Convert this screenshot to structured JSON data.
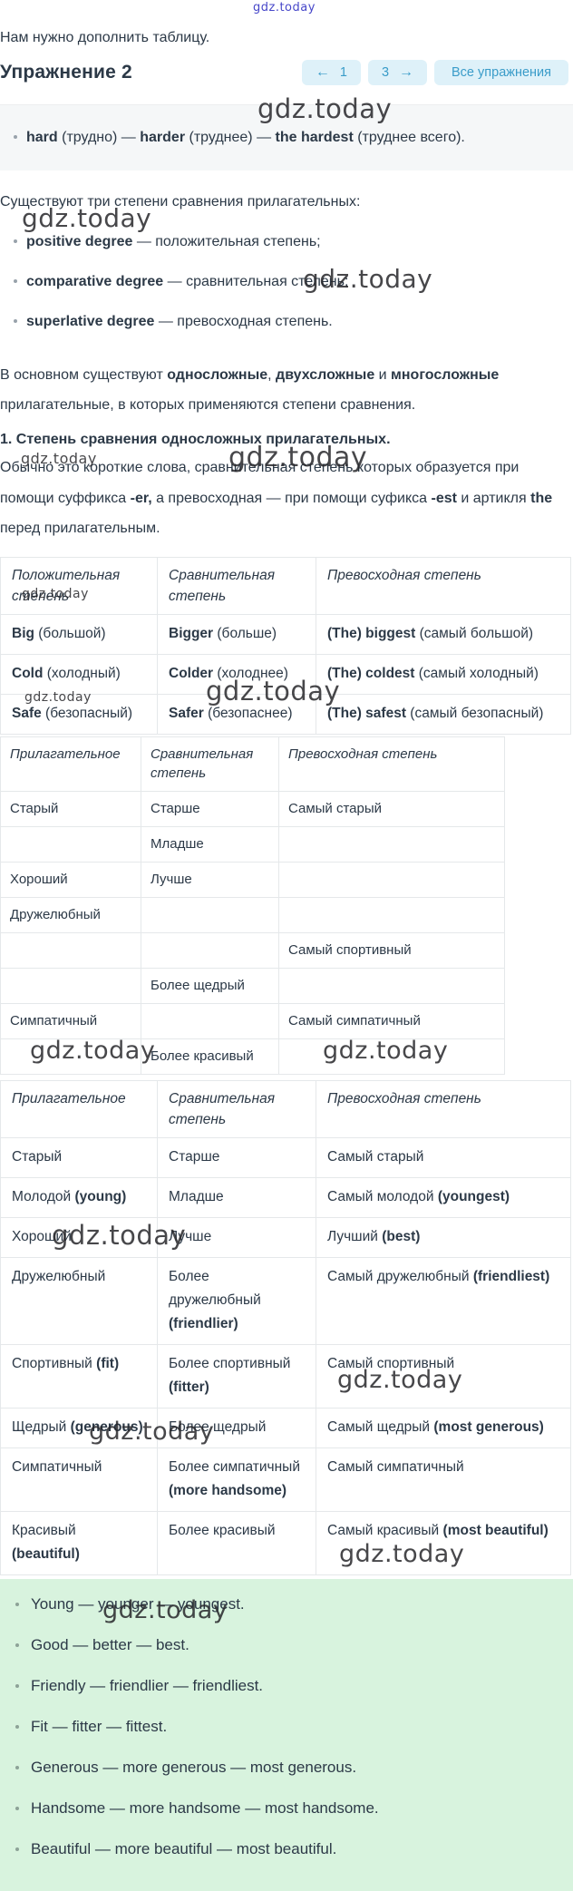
{
  "watermark": "gdz.today",
  "intro_text": "Нам нужно дополнить таблицу.",
  "header": {
    "title": "Упражнение 2",
    "nav": {
      "prev_arrow": "←",
      "prev_number": "1",
      "next_number": "3",
      "next_arrow": "→",
      "all_label": "Все упражнения"
    }
  },
  "example_line": [
    {
      "t": "hard",
      "b": true
    },
    {
      "t": " (трудно) — "
    },
    {
      "t": "harder",
      "b": true
    },
    {
      "t": " (труднее) — "
    },
    {
      "t": "the hardest",
      "b": true
    },
    {
      "t": " (труднее всего)."
    }
  ],
  "lead_text": "Существуют три степени сравнения прилагательных:",
  "degree_bullets": [
    [
      {
        "t": "positive degree",
        "b": true
      },
      {
        "t": " — положительная степень;"
      }
    ],
    [
      {
        "t": "comparative degree",
        "b": true
      },
      {
        "t": " — сравнительная степень;"
      }
    ],
    [
      {
        "t": "superlative degree",
        "b": true
      },
      {
        "t": " — превосходная степень."
      }
    ]
  ],
  "para_main": [
    {
      "t": "В основном существуют "
    },
    {
      "t": "односложные",
      "b": true
    },
    {
      "t": ", "
    },
    {
      "t": "двухсложные",
      "b": true
    },
    {
      "t": " и "
    },
    {
      "t": "многосложные",
      "b": true
    },
    {
      "t": " прилагательные, в которых применяются степени сравнения."
    }
  ],
  "section_title": [
    {
      "t": "1. Степень сравнения односложных прилагательных.",
      "b": true
    }
  ],
  "para_usual": [
    {
      "t": "Обычно это короткие слова, сравнительная степень которых образуется при помощи суффикса "
    },
    {
      "t": "-er,",
      "b": true
    },
    {
      "t": " а превосходная — при помощи суфикса "
    },
    {
      "t": "-est",
      "b": true
    },
    {
      "t": " и артикля "
    },
    {
      "t": "the",
      "b": true
    },
    {
      "t": " перед прилагательным."
    }
  ],
  "table_examples": {
    "headers": [
      "Положительная степень",
      "Сравнительная степень",
      "Превосходная степень"
    ],
    "rows": [
      [
        [
          {
            "t": "Big",
            "b": true
          },
          {
            "t": " (большой)"
          }
        ],
        [
          {
            "t": "Bigger",
            "b": true
          },
          {
            "t": " (больше)"
          }
        ],
        [
          {
            "t": "(The) biggest",
            "b": true
          },
          {
            "t": " (самый большой)"
          }
        ]
      ],
      [
        [
          {
            "t": "Cold",
            "b": true
          },
          {
            "t": " (холодный)"
          }
        ],
        [
          {
            "t": "Colder",
            "b": true
          },
          {
            "t": " (холоднее)"
          }
        ],
        [
          {
            "t": "(The) coldest",
            "b": true
          },
          {
            "t": " (самый холодный)"
          }
        ]
      ],
      [
        [
          {
            "t": "Safe",
            "b": true
          },
          {
            "t": " (безопасный)"
          }
        ],
        [
          {
            "t": "Safer",
            "b": true
          },
          {
            "t": " (безопаснее)"
          }
        ],
        [
          {
            "t": "(The) safest",
            "b": true
          },
          {
            "t": " (самый безопасный)"
          }
        ]
      ]
    ]
  },
  "table_task": {
    "headers": [
      "Прилагательное",
      "Сравнительная степень",
      "Превосходная степень"
    ],
    "rows": [
      [
        [
          {
            "t": "Старый"
          }
        ],
        [
          {
            "t": "Старше"
          }
        ],
        [
          {
            "t": "Самый старый"
          }
        ]
      ],
      [
        [],
        [
          {
            "t": "Младше"
          }
        ],
        []
      ],
      [
        [
          {
            "t": "Хороший"
          }
        ],
        [
          {
            "t": "Лучше"
          }
        ],
        []
      ],
      [
        [
          {
            "t": "Дружелюбный"
          }
        ],
        [],
        []
      ],
      [
        [],
        [],
        [
          {
            "t": "Самый спортивный"
          }
        ]
      ],
      [
        [],
        [
          {
            "t": "Более щедрый"
          }
        ],
        []
      ],
      [
        [
          {
            "t": "Симпатичный"
          }
        ],
        [],
        [
          {
            "t": "Самый симпатичный"
          }
        ]
      ],
      [
        [],
        [
          {
            "t": "Более красивый"
          }
        ],
        []
      ]
    ]
  },
  "table_solution": {
    "headers": [
      "Прилагательное",
      "Сравнительная степень",
      "Превосходная степень"
    ],
    "rows": [
      [
        [
          {
            "t": "Старый"
          }
        ],
        [
          {
            "t": "Старше"
          }
        ],
        [
          {
            "t": "Самый старый"
          }
        ]
      ],
      [
        [
          {
            "t": "Молодой "
          },
          {
            "t": "(young)",
            "b": true
          }
        ],
        [
          {
            "t": "Младше"
          }
        ],
        [
          {
            "t": "Самый молодой "
          },
          {
            "t": "(youngest)",
            "b": true
          }
        ]
      ],
      [
        [
          {
            "t": "Хороший"
          }
        ],
        [
          {
            "t": "Лучше"
          }
        ],
        [
          {
            "t": "Лучший "
          },
          {
            "t": "(best)",
            "b": true
          }
        ]
      ],
      [
        [
          {
            "t": "Дружелюбный"
          }
        ],
        [
          {
            "t": "Более дружелюбный "
          },
          {
            "t": "(friendlier)",
            "b": true
          }
        ],
        [
          {
            "t": "Самый дружелюбный "
          },
          {
            "t": "(friendliest)",
            "b": true
          }
        ]
      ],
      [
        [
          {
            "t": "Спортивный "
          },
          {
            "t": "(fit)",
            "b": true
          }
        ],
        [
          {
            "t": "Более спортивный "
          },
          {
            "t": "(fitter)",
            "b": true
          }
        ],
        [
          {
            "t": "Самый спортивный"
          }
        ]
      ],
      [
        [
          {
            "t": "Щедрый "
          },
          {
            "t": "(generous)",
            "b": true
          }
        ],
        [
          {
            "t": "Более щедрый"
          }
        ],
        [
          {
            "t": "Самый щедрый "
          },
          {
            "t": "(most generous)",
            "b": true
          }
        ]
      ],
      [
        [
          {
            "t": "Симпатичный"
          }
        ],
        [
          {
            "t": "Более симпатичный "
          },
          {
            "t": "(more handsome)",
            "b": true
          }
        ],
        [
          {
            "t": "Самый симпатичный"
          }
        ]
      ],
      [
        [
          {
            "t": "Красивый "
          },
          {
            "t": "(beautiful)",
            "b": true
          }
        ],
        [
          {
            "t": "Более красивый"
          }
        ],
        [
          {
            "t": "Самый красивый "
          },
          {
            "t": "(most beautiful)",
            "b": true
          }
        ]
      ]
    ]
  },
  "answers": [
    "Young — younger — youngest.",
    "Good — better — best.",
    "Friendly — friendlier — friendliest.",
    "Fit — fitter — fittest.",
    "Generous — more generous — most generous.",
    "Handsome — more handsome — most handsome.",
    "Beautiful — more beautiful — most beautiful."
  ],
  "colors": {
    "text": "#2c3947",
    "nav_button_bg": "#def1f9",
    "nav_button_text": "#3a9cc9",
    "answer_panel_bg": "#d8f3de",
    "example_panel_bg": "#f5f7f8",
    "table_border": "#e5e8ea",
    "watermark_blue": "#4747c9"
  }
}
